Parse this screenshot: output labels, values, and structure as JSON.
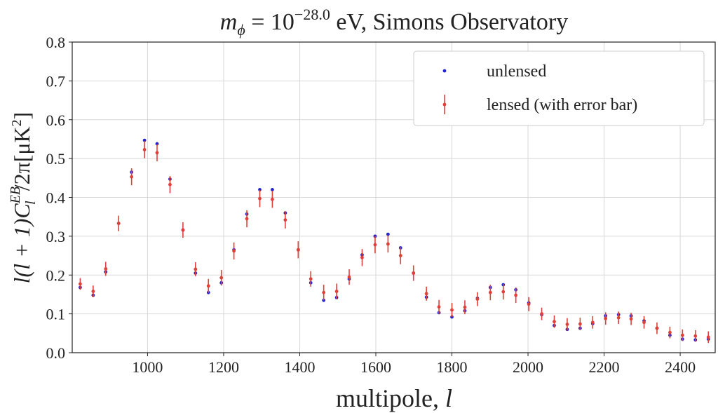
{
  "chart_data": {
    "type": "errorbar",
    "title": [
      "m",
      "ϕ",
      " = 10",
      "−28.0",
      " eV, Simons Observatory"
    ],
    "x_label": [
      "multipole, ",
      "l"
    ],
    "y_label": [
      "l(l + 1)C",
      "EB",
      "l",
      "/2π[μK",
      "2",
      "]"
    ],
    "x": [
      823,
      857,
      890,
      924,
      958,
      992,
      1025,
      1059,
      1093,
      1126,
      1160,
      1194,
      1227,
      1261,
      1295,
      1328,
      1362,
      1396,
      1429,
      1463,
      1497,
      1530,
      1564,
      1598,
      1632,
      1665,
      1699,
      1733,
      1766,
      1800,
      1834,
      1867,
      1901,
      1935,
      1968,
      2002,
      2036,
      2069,
      2103,
      2137,
      2170,
      2204,
      2238,
      2271,
      2305,
      2339,
      2373,
      2406,
      2440,
      2474
    ],
    "series": [
      {
        "name": "unlensed",
        "color": "#2424d0",
        "values": [
          0.168,
          0.148,
          0.208,
          0.333,
          0.465,
          0.547,
          0.538,
          0.447,
          0.316,
          0.205,
          0.155,
          0.18,
          0.265,
          0.357,
          0.42,
          0.42,
          0.36,
          0.265,
          0.18,
          0.135,
          0.142,
          0.19,
          0.252,
          0.3,
          0.305,
          0.27,
          0.205,
          0.143,
          0.103,
          0.092,
          0.108,
          0.14,
          0.168,
          0.175,
          0.162,
          0.128,
          0.098,
          0.07,
          0.06,
          0.063,
          0.075,
          0.095,
          0.098,
          0.095,
          0.082,
          0.063,
          0.045,
          0.035,
          0.033,
          0.035
        ]
      },
      {
        "name": "lensed (with error bar)",
        "color": "#e0403a",
        "values": [
          0.177,
          0.158,
          0.216,
          0.333,
          0.453,
          0.523,
          0.515,
          0.433,
          0.316,
          0.215,
          0.172,
          0.193,
          0.262,
          0.345,
          0.397,
          0.395,
          0.342,
          0.265,
          0.19,
          0.155,
          0.158,
          0.195,
          0.245,
          0.278,
          0.28,
          0.25,
          0.205,
          0.152,
          0.118,
          0.11,
          0.117,
          0.138,
          0.155,
          0.157,
          0.148,
          0.125,
          0.1,
          0.08,
          0.073,
          0.074,
          0.078,
          0.088,
          0.09,
          0.087,
          0.078,
          0.063,
          0.052,
          0.045,
          0.043,
          0.04
        ],
        "errors": [
          0.015,
          0.015,
          0.018,
          0.02,
          0.022,
          0.022,
          0.022,
          0.022,
          0.02,
          0.018,
          0.018,
          0.02,
          0.022,
          0.022,
          0.022,
          0.022,
          0.022,
          0.022,
          0.02,
          0.02,
          0.02,
          0.02,
          0.022,
          0.022,
          0.022,
          0.022,
          0.02,
          0.018,
          0.018,
          0.018,
          0.018,
          0.018,
          0.02,
          0.02,
          0.02,
          0.018,
          0.016,
          0.016,
          0.016,
          0.016,
          0.016,
          0.016,
          0.016,
          0.016,
          0.016,
          0.015,
          0.015,
          0.015,
          0.015,
          0.015
        ]
      }
    ],
    "xlim": [
      802,
      2492
    ],
    "ylim": [
      0,
      0.8
    ],
    "xticks": [
      1000,
      1200,
      1400,
      1600,
      1800,
      2000,
      2200,
      2400
    ],
    "yticks": [
      {
        "value": 0,
        "label": "0.0"
      },
      0.1,
      0.2,
      0.3,
      0.4,
      0.5,
      0.6,
      0.7,
      0.8
    ],
    "grid": true,
    "legend": "upper right"
  }
}
